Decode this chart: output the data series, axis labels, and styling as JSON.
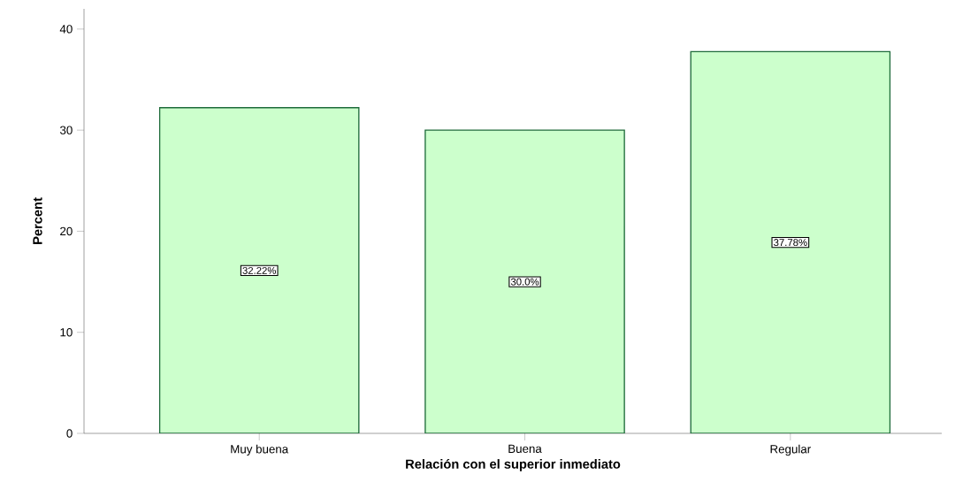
{
  "chart_data": {
    "type": "bar",
    "xlabel": "Relación con el superior inmediato",
    "ylabel": "Percent",
    "categories": [
      "Muy buena",
      "Buena",
      "Regular"
    ],
    "values": [
      32.22,
      30.0,
      37.78
    ],
    "value_labels": [
      "32.22%",
      "30.0%",
      "37.78%"
    ],
    "color": "#ccffcc",
    "ylim": [
      0,
      42
    ],
    "yticks": [
      0,
      10,
      20,
      30,
      40
    ],
    "grid": false
  }
}
